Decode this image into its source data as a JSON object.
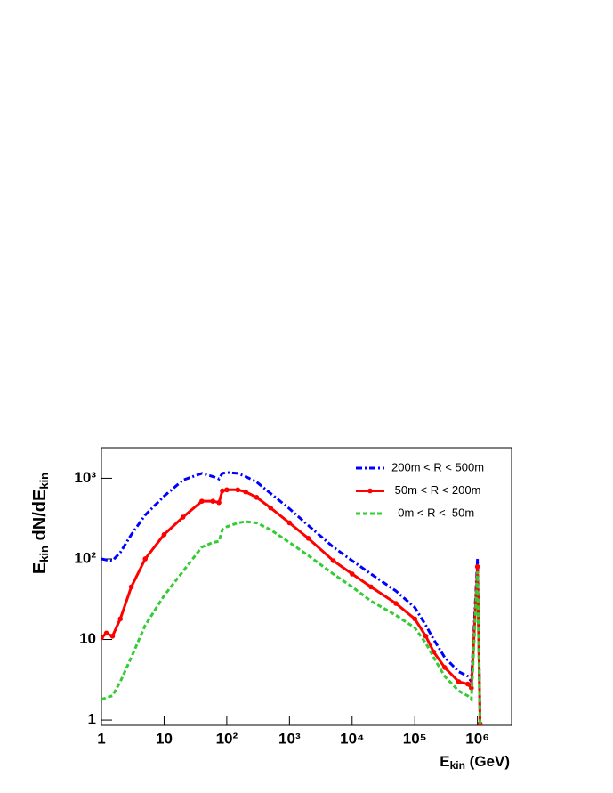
{
  "chart_data": {
    "type": "line",
    "log_x": true,
    "log_y": true,
    "xlabel": [
      "E",
      "kin",
      " (GeV)"
    ],
    "ylabel": [
      "E",
      "kin",
      " dN/dE",
      "kin"
    ],
    "x": [
      1,
      1.2,
      1.5,
      2,
      3,
      5,
      10,
      20,
      40,
      60,
      75,
      85,
      100,
      150,
      200,
      300,
      500,
      1000,
      2000,
      5000,
      10000,
      20000,
      50000,
      100000,
      150000,
      200000,
      300000,
      500000,
      700000,
      800000,
      1000000,
      1100000
    ],
    "series": [
      {
        "name": "200m < R < 500m",
        "color": "#0000ff",
        "style": "dashdot",
        "marker": false,
        "values": [
          100,
          97,
          95,
          120,
          200,
          350,
          600,
          950,
          1150,
          1050,
          980,
          1150,
          1180,
          1150,
          1050,
          900,
          650,
          420,
          260,
          140,
          95,
          65,
          40,
          25,
          15,
          10,
          6,
          4,
          3.5,
          3,
          100,
          0.9
        ]
      },
      {
        "name": " 50m < R < 200m",
        "color": "#ff0000",
        "style": "solid",
        "marker": true,
        "values": [
          10.5,
          12,
          11,
          18,
          45,
          100,
          200,
          330,
          520,
          520,
          500,
          700,
          720,
          720,
          680,
          580,
          430,
          280,
          180,
          95,
          65,
          45,
          28,
          18,
          11,
          7,
          4.5,
          3,
          2.8,
          2.5,
          80,
          0.9
        ]
      },
      {
        "name": "  0m < R <  50m",
        "color": "#33cc33",
        "style": "dashed",
        "marker": false,
        "values": [
          1.8,
          1.9,
          2,
          3,
          6,
          15,
          35,
          70,
          140,
          160,
          165,
          230,
          250,
          280,
          290,
          280,
          230,
          160,
          110,
          65,
          45,
          30,
          20,
          14,
          9,
          6,
          3.5,
          2.3,
          2,
          1.8,
          70,
          0.9
        ]
      }
    ],
    "xlim": [
      1,
      3500000
    ],
    "ylim": [
      0.86,
      2400
    ],
    "xticks": [
      1,
      10,
      {
        "value": 100,
        "label": "10²"
      },
      {
        "value": 1000,
        "label": "10³"
      },
      {
        "value": 10000,
        "label": "10⁴"
      },
      {
        "value": 100000,
        "label": "10⁵"
      },
      {
        "value": 1000000,
        "label": "10⁶"
      }
    ],
    "yticks": [
      1,
      10,
      {
        "value": 100,
        "label": "10²"
      },
      {
        "value": 1000,
        "label": "10³"
      }
    ],
    "legend": "upper right"
  }
}
